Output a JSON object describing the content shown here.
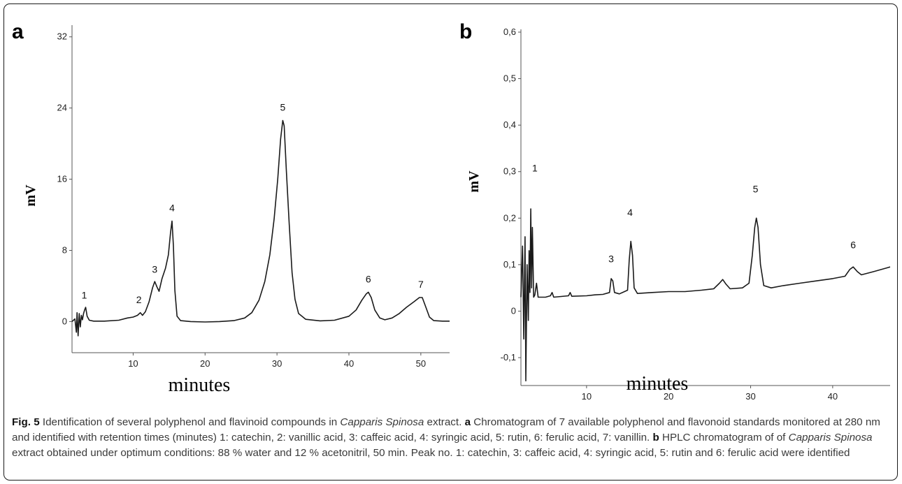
{
  "chart_data": [
    {
      "panel": "a",
      "type": "line",
      "xlabel": "minutes",
      "ylabel": "mV",
      "xlim": [
        1.5,
        54
      ],
      "ylim": [
        -3.5,
        33
      ],
      "xticks": [
        10,
        20,
        30,
        40,
        50
      ],
      "yticks": [
        0,
        8,
        16,
        24,
        32
      ],
      "ytick_labels": [
        "0",
        "8",
        "16",
        "24",
        "32"
      ],
      "series": [
        {
          "points": [
            [
              1.5,
              0
            ],
            [
              1.9,
              0.3
            ],
            [
              2.1,
              -1.2
            ],
            [
              2.2,
              1.0
            ],
            [
              2.35,
              -1.6
            ],
            [
              2.5,
              0.9
            ],
            [
              2.65,
              -0.6
            ],
            [
              2.8,
              0.7
            ],
            [
              2.95,
              0.2
            ],
            [
              3.1,
              0.9
            ],
            [
              3.25,
              1.3
            ],
            [
              3.4,
              1.6
            ],
            [
              3.6,
              0.6
            ],
            [
              3.9,
              0.15
            ],
            [
              4.5,
              0.05
            ],
            [
              6,
              0.05
            ],
            [
              8,
              0.15
            ],
            [
              9.2,
              0.4
            ],
            [
              10,
              0.5
            ],
            [
              10.6,
              0.7
            ],
            [
              11,
              1.0
            ],
            [
              11.3,
              0.7
            ],
            [
              11.7,
              1.1
            ],
            [
              12.2,
              2.2
            ],
            [
              12.7,
              3.8
            ],
            [
              13.0,
              4.5
            ],
            [
              13.3,
              3.9
            ],
            [
              13.6,
              3.4
            ],
            [
              14.0,
              4.8
            ],
            [
              14.5,
              6.0
            ],
            [
              14.9,
              7.5
            ],
            [
              15.2,
              10.0
            ],
            [
              15.4,
              11.3
            ],
            [
              15.6,
              8.5
            ],
            [
              15.8,
              3.5
            ],
            [
              16.1,
              0.6
            ],
            [
              16.6,
              0.1
            ],
            [
              18,
              0
            ],
            [
              20,
              -0.05
            ],
            [
              22,
              0
            ],
            [
              24,
              0.1
            ],
            [
              25.5,
              0.4
            ],
            [
              26.5,
              1.0
            ],
            [
              27.5,
              2.4
            ],
            [
              28.3,
              4.5
            ],
            [
              29,
              7.5
            ],
            [
              29.6,
              11.5
            ],
            [
              30.1,
              16
            ],
            [
              30.5,
              20.5
            ],
            [
              30.8,
              22.6
            ],
            [
              31.0,
              22.0
            ],
            [
              31.3,
              17
            ],
            [
              31.7,
              11
            ],
            [
              32.1,
              5.5
            ],
            [
              32.5,
              2.5
            ],
            [
              33,
              0.9
            ],
            [
              34,
              0.25
            ],
            [
              36,
              0.08
            ],
            [
              38,
              0.15
            ],
            [
              40,
              0.6
            ],
            [
              41,
              1.3
            ],
            [
              41.8,
              2.4
            ],
            [
              42.4,
              3.1
            ],
            [
              42.7,
              3.3
            ],
            [
              43.1,
              2.7
            ],
            [
              43.6,
              1.3
            ],
            [
              44.3,
              0.4
            ],
            [
              45,
              0.2
            ],
            [
              46,
              0.4
            ],
            [
              47,
              0.9
            ],
            [
              48,
              1.6
            ],
            [
              49,
              2.2
            ],
            [
              49.8,
              2.7
            ],
            [
              50.2,
              2.7
            ],
            [
              50.7,
              1.6
            ],
            [
              51.2,
              0.5
            ],
            [
              51.8,
              0.1
            ],
            [
              53,
              0.05
            ],
            [
              54,
              0.05
            ]
          ]
        }
      ],
      "peak_labels": [
        {
          "label": "1",
          "x": 3.2,
          "y": 1.8
        },
        {
          "label": "2",
          "x": 10.8,
          "y": 1.3
        },
        {
          "label": "3",
          "x": 13.0,
          "y": 4.7
        },
        {
          "label": "4",
          "x": 15.4,
          "y": 11.6
        },
        {
          "label": "5",
          "x": 30.8,
          "y": 22.9
        },
        {
          "label": "6",
          "x": 42.7,
          "y": 3.6
        },
        {
          "label": "7",
          "x": 50.0,
          "y": 3.0
        }
      ]
    },
    {
      "panel": "b",
      "type": "line",
      "xlabel": "minutes",
      "ylabel": "mV",
      "xlim": [
        2,
        47
      ],
      "ylim": [
        -0.16,
        0.6
      ],
      "xticks": [
        10,
        20,
        30,
        40
      ],
      "yticks": [
        -0.1,
        0,
        0.1,
        0.2,
        0.3,
        0.4,
        0.5,
        0.6
      ],
      "ytick_labels": [
        "-0,1",
        "0",
        "0,1",
        "0,2",
        "0,3",
        "0,4",
        "0,5",
        "0,6"
      ],
      "series": [
        {
          "points": [
            [
              2,
              0.03
            ],
            [
              2.2,
              0.14
            ],
            [
              2.35,
              -0.06
            ],
            [
              2.5,
              0.16
            ],
            [
              2.6,
              -0.15
            ],
            [
              2.75,
              0.1
            ],
            [
              2.9,
              -0.02
            ],
            [
              3.0,
              0.13
            ],
            [
              3.1,
              0.04
            ],
            [
              3.2,
              0.22
            ],
            [
              3.3,
              0.05
            ],
            [
              3.4,
              0.18
            ],
            [
              3.55,
              0.03
            ],
            [
              3.7,
              0.035
            ],
            [
              3.9,
              0.06
            ],
            [
              4.1,
              0.03
            ],
            [
              5,
              0.03
            ],
            [
              5.6,
              0.033
            ],
            [
              5.8,
              0.04
            ],
            [
              6,
              0.03
            ],
            [
              7.8,
              0.033
            ],
            [
              8.0,
              0.04
            ],
            [
              8.2,
              0.032
            ],
            [
              10,
              0.033
            ],
            [
              11,
              0.035
            ],
            [
              12,
              0.036
            ],
            [
              12.8,
              0.04
            ],
            [
              13.0,
              0.07
            ],
            [
              13.2,
              0.065
            ],
            [
              13.4,
              0.04
            ],
            [
              14,
              0.037
            ],
            [
              15,
              0.045
            ],
            [
              15.2,
              0.11
            ],
            [
              15.4,
              0.15
            ],
            [
              15.6,
              0.12
            ],
            [
              15.8,
              0.05
            ],
            [
              16.2,
              0.038
            ],
            [
              18,
              0.04
            ],
            [
              20,
              0.042
            ],
            [
              22,
              0.042
            ],
            [
              24,
              0.045
            ],
            [
              25.5,
              0.048
            ],
            [
              26.2,
              0.06
            ],
            [
              26.6,
              0.068
            ],
            [
              27.0,
              0.058
            ],
            [
              27.5,
              0.048
            ],
            [
              29,
              0.05
            ],
            [
              29.8,
              0.06
            ],
            [
              30.2,
              0.12
            ],
            [
              30.5,
              0.18
            ],
            [
              30.7,
              0.2
            ],
            [
              30.9,
              0.18
            ],
            [
              31.2,
              0.1
            ],
            [
              31.6,
              0.055
            ],
            [
              32.5,
              0.05
            ],
            [
              34,
              0.055
            ],
            [
              36,
              0.06
            ],
            [
              38,
              0.065
            ],
            [
              40,
              0.07
            ],
            [
              41.5,
              0.075
            ],
            [
              42.1,
              0.09
            ],
            [
              42.5,
              0.095
            ],
            [
              43,
              0.085
            ],
            [
              43.5,
              0.078
            ],
            [
              45,
              0.085
            ],
            [
              47,
              0.095
            ]
          ]
        }
      ],
      "peak_labels": [
        {
          "label": "1",
          "x": 3.7,
          "y": 0.285
        },
        {
          "label": "3",
          "x": 13.0,
          "y": 0.09
        },
        {
          "label": "4",
          "x": 15.3,
          "y": 0.19
        },
        {
          "label": "5",
          "x": 30.6,
          "y": 0.24
        },
        {
          "label": "6",
          "x": 42.5,
          "y": 0.12
        }
      ]
    }
  ],
  "caption": {
    "fig": "Fig. 5",
    "intro": " Identification of several polyphenol and flavinoid compounds in ",
    "species1": "Capparis Spinosa",
    "intro_end": " extract. ",
    "label_a": "a",
    "text_a": " Chromatogram of 7 available polyphenol and flavonoid standards monitored at 280 nm and identified with retention times (minutes) 1: catechin, 2: vanillic acid, 3: caffeic acid, 4: syringic acid, 5: rutin, 6: ferulic acid, 7: vanillin. ",
    "label_b": "b",
    "text_b1": " HPLC chromatogram of of ",
    "species2": "Capparis Spinosa",
    "text_b2": " extract obtained under optimum conditions: 88 % water and 12 % acetonitril, 50 min. Peak no. 1: catechin, 3: caffeic acid, 4: syringic acid, 5: rutin and 6: ferulic acid were identified"
  }
}
